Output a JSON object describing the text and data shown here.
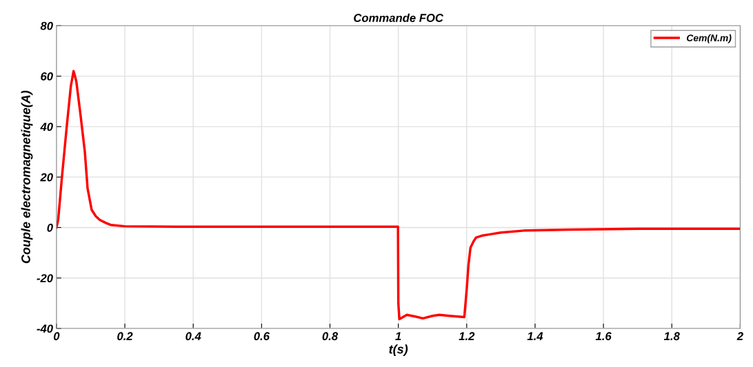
{
  "chart_data": {
    "type": "line",
    "title": "Commande FOC",
    "xlabel": "t(s)",
    "ylabel": "Couple electromagnetique(A)",
    "xlim": [
      0,
      2
    ],
    "xticks": [
      0,
      0.2,
      0.4,
      0.6,
      0.8,
      1,
      1.2,
      1.4,
      1.6,
      1.8,
      2
    ],
    "ylim": [
      -40,
      80
    ],
    "yticks": [
      -40,
      -20,
      0,
      20,
      40,
      60,
      80
    ],
    "grid": true,
    "legend": "top right",
    "series": [
      {
        "name": "Cem(N.m)",
        "color": "#ff0000",
        "x": [
          0,
          0.005,
          0.016,
          0.03,
          0.042,
          0.05,
          0.058,
          0.07,
          0.083,
          0.091,
          0.103,
          0.115,
          0.127,
          0.145,
          0.16,
          0.2,
          0.4,
          0.6,
          0.8,
          0.999,
          1.0,
          1.003,
          1.025,
          1.05,
          1.072,
          1.1,
          1.12,
          1.15,
          1.193,
          1.2,
          1.205,
          1.211,
          1.22,
          1.227,
          1.245,
          1.267,
          1.3,
          1.368,
          1.5,
          1.7,
          2
        ],
        "values": [
          0,
          3,
          20,
          40,
          56,
          62,
          58,
          45,
          30,
          15.5,
          7,
          4.5,
          3,
          1.8,
          1,
          0.5,
          0.3,
          0.3,
          0.3,
          0.3,
          -30,
          -36.3,
          -34.6,
          -35.3,
          -36,
          -35,
          -34.6,
          -35,
          -35.5,
          -24.5,
          -15,
          -8,
          -5.5,
          -4,
          -3.2,
          -2.7,
          -2,
          -1.2,
          -0.8,
          -0.5,
          -0.5
        ]
      }
    ]
  }
}
